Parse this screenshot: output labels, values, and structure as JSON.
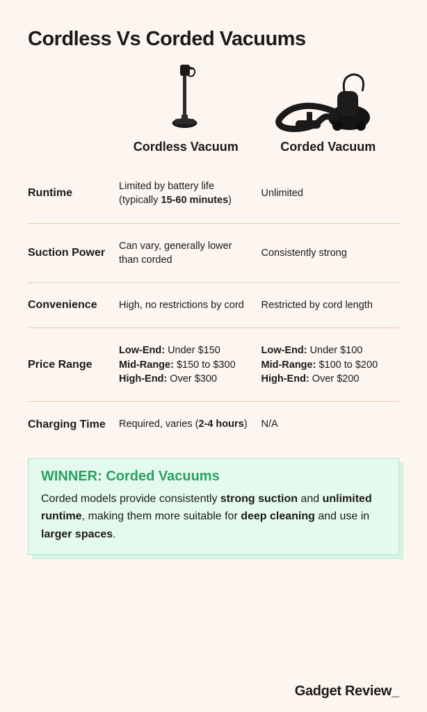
{
  "title": "Cordless Vs Corded Vacuums",
  "columns": {
    "a": "Cordless Vacuum",
    "b": "Corded Vacuum"
  },
  "rows": [
    {
      "label": "Runtime",
      "a_html": "Limited by battery life (typically <b>15-60 minutes</b>)",
      "b_html": "Unlimited"
    },
    {
      "label": "Suction Power",
      "a_html": "Can vary, generally lower than corded",
      "b_html": "Consistently strong"
    },
    {
      "label": "Convenience",
      "a_html": "High, no restrictions by cord",
      "b_html": "Restricted by cord length"
    },
    {
      "label": "Price Range",
      "a_html": "<div class='pr-line'><b>Low-End:</b> Under $150</div><div class='pr-line'><b>Mid-Range:</b> $150 to $300</div><div class='pr-line'><b>High-End:</b> Over $300</div>",
      "b_html": "<div class='pr-line'><b>Low-End:</b> Under $100</div><div class='pr-line'><b>Mid-Range:</b> $100 to $200</div><div class='pr-line'><b>High-End:</b> Over $200</div>"
    },
    {
      "label": "Charging Time",
      "a_html": "Required, varies (<b>2-4 hours</b>)",
      "b_html": "N/A"
    }
  ],
  "winner": {
    "title": "WINNER: Corded Vacuums",
    "text_html": "Corded models provide consistently <b>strong suction</b> and <b>unlimited runtime</b>, making them more suitable for <b>deep cleaning</b> and use in <b>larger spaces</b>."
  },
  "brand": "Gadget Review",
  "brand_cursor": "_",
  "style": {
    "background": "#fcf5f0",
    "divider_color": "#f5c6b0",
    "winner_bg": "#e5faee",
    "winner_border": "#b8e8cc",
    "winner_shadow_bg": "#d6f4e2",
    "winner_title_color": "#28a15f",
    "text_color": "#1a1a1a",
    "title_fontsize": 29,
    "col_header_fontsize": 18,
    "row_label_fontsize": 16,
    "cell_fontsize": 14.5,
    "winner_title_fontsize": 20,
    "winner_text_fontsize": 16,
    "brand_fontsize": 20
  },
  "icons": {
    "cordless": "cordless-stick-vacuum",
    "corded": "corded-canister-vacuum"
  }
}
